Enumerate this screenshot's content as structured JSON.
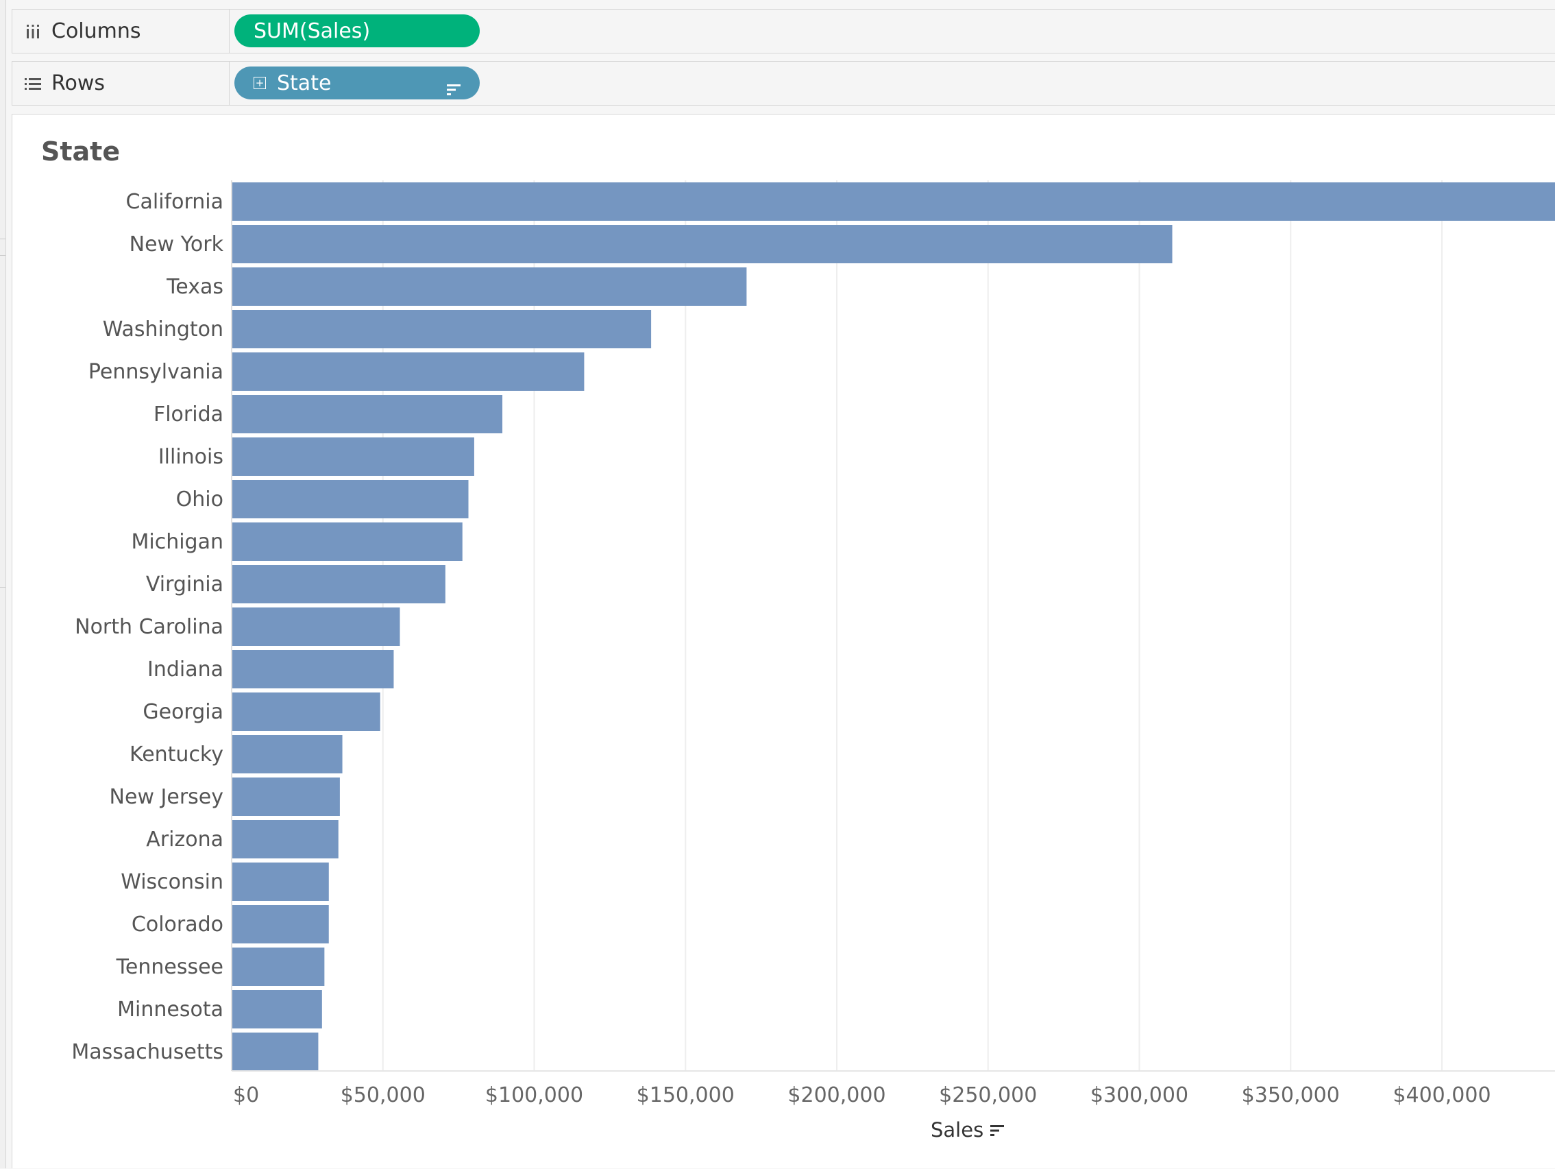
{
  "shelves": {
    "columns": {
      "label": "Columns",
      "icon": "columns-icon",
      "pill": "SUM(Sales)",
      "pill_color": "#00b27b"
    },
    "rows": {
      "label": "Rows",
      "icon": "rows-icon",
      "pill": "State",
      "pill_color": "#4e97b5"
    }
  },
  "chart_data": {
    "type": "bar",
    "orientation": "horizontal",
    "row_header": "State",
    "categories": [
      "California",
      "New York",
      "Texas",
      "Washington",
      "Pennsylvania",
      "Florida",
      "Illinois",
      "Ohio",
      "Michigan",
      "Virginia",
      "North Carolina",
      "Indiana",
      "Georgia",
      "Kentucky",
      "New Jersey",
      "Arizona",
      "Wisconsin",
      "Colorado",
      "Tennessee",
      "Minnesota",
      "Massachusetts"
    ],
    "values": [
      457688,
      310876,
      170188,
      138641,
      116512,
      89474,
      80166,
      78258,
      76270,
      70637,
      55603,
      53555,
      49096,
      36592,
      35764,
      35282,
      32114,
      32108,
      30662,
      29863,
      28634
    ],
    "xlabel": "Sales",
    "xticks": [
      "$0",
      "$50,000",
      "$100,000",
      "$150,000",
      "$200,000",
      "$250,000",
      "$300,000",
      "$350,000",
      "$400,000",
      "$"
    ],
    "xlim": [
      0,
      450000
    ],
    "grid": true,
    "bar_color": "#7596c1"
  }
}
